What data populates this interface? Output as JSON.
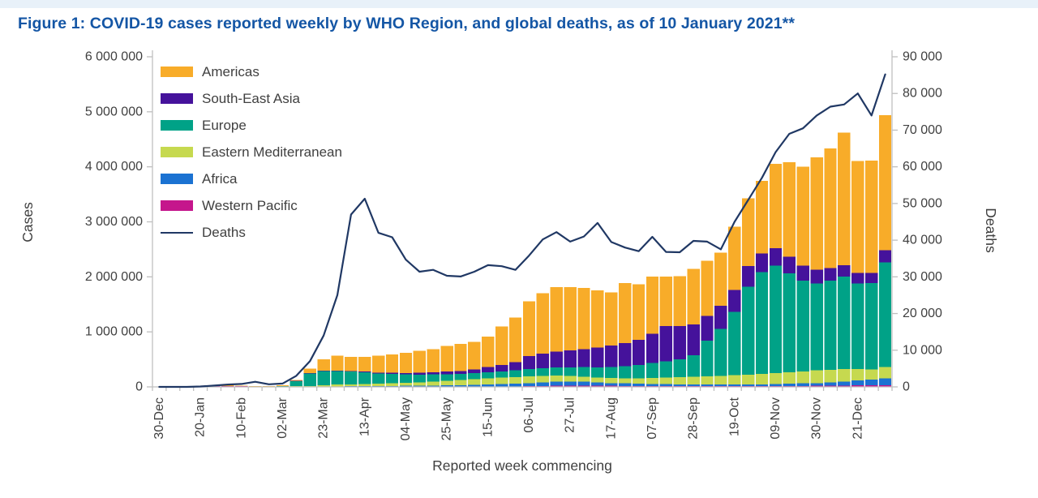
{
  "title": "Figure 1: COVID-19 cases reported weekly by WHO Region, and global deaths, as of 10 January 2021**",
  "colors": {
    "title_text": "#1456a5",
    "axis_text": "#404040",
    "axis_line": "#bfbfbf",
    "top_band": "#e8f1f9",
    "background": "#ffffff",
    "deaths_line": "#203864"
  },
  "left_axis": {
    "label": "Cases",
    "tick_labels": [
      "0",
      "1 000 000",
      "2 000 000",
      "3 000 000",
      "4 000 000",
      "5 000 000",
      "6 000 000"
    ],
    "max": 6000000
  },
  "right_axis": {
    "label": "Deaths",
    "tick_labels": [
      "0",
      "10 000",
      "20 000",
      "30 000",
      "40 000",
      "50 000",
      "60 000",
      "70 000",
      "80 000",
      "90 000"
    ],
    "max": 90000
  },
  "x_axis": {
    "label": "Reported week commencing",
    "visible_tick_labels": [
      "30-Dec",
      "20-Jan",
      "10-Feb",
      "02-Mar",
      "23-Mar",
      "13-Apr",
      "04-May",
      "25-May",
      "15-Jun",
      "06-Jul",
      "27-Jul",
      "17-Aug",
      "07-Sep",
      "28-Sep",
      "19-Oct",
      "09-Nov",
      "30-Nov",
      "21-Dec"
    ],
    "label_every": 3
  },
  "legend": {
    "order": [
      "Americas",
      "South-East Asia",
      "Europe",
      "Eastern Mediterranean",
      "Africa",
      "Western Pacific",
      "Deaths"
    ]
  },
  "chart_data": {
    "type": "bar",
    "subtype": "stacked-weekly-bars-with-line-overlay",
    "title": "COVID-19 cases reported weekly by WHO Region, and global deaths, as of 10 January 2021",
    "xlabel": "Reported week commencing",
    "ylabel_left": "Cases",
    "ylabel_right": "Deaths",
    "ylim_left": [
      0,
      6000000
    ],
    "ylim_right": [
      0,
      90000
    ],
    "grid": false,
    "legend_position": "inside-top-left",
    "categories": [
      "30-Dec",
      "06-Jan",
      "13-Jan",
      "20-Jan",
      "27-Jan",
      "03-Feb",
      "10-Feb",
      "17-Feb",
      "24-Feb",
      "02-Mar",
      "09-Mar",
      "16-Mar",
      "23-Mar",
      "30-Mar",
      "06-Apr",
      "13-Apr",
      "20-Apr",
      "27-Apr",
      "04-May",
      "11-May",
      "18-May",
      "25-May",
      "01-Jun",
      "08-Jun",
      "15-Jun",
      "22-Jun",
      "29-Jun",
      "06-Jul",
      "13-Jul",
      "20-Jul",
      "27-Jul",
      "03-Aug",
      "10-Aug",
      "17-Aug",
      "24-Aug",
      "31-Aug",
      "07-Sep",
      "14-Sep",
      "21-Sep",
      "28-Sep",
      "05-Oct",
      "12-Oct",
      "19-Oct",
      "26-Oct",
      "02-Nov",
      "09-Nov",
      "16-Nov",
      "23-Nov",
      "30-Nov",
      "07-Dec",
      "14-Dec",
      "21-Dec",
      "28-Dec",
      "04-Jan"
    ],
    "series": [
      {
        "name": "Western Pacific",
        "color": "#c5168c",
        "values": [
          1000,
          1000,
          2000,
          6000,
          25000,
          27000,
          20000,
          12000,
          8000,
          6000,
          5000,
          4000,
          4000,
          4000,
          4000,
          4000,
          4000,
          4000,
          4000,
          4000,
          4000,
          5000,
          5000,
          6000,
          7000,
          8000,
          10000,
          13000,
          16000,
          20000,
          22000,
          23000,
          22000,
          20000,
          18000,
          16000,
          14000,
          13000,
          12000,
          12000,
          12000,
          12000,
          13000,
          14000,
          15000,
          16000,
          17000,
          18000,
          20000,
          22000,
          25000,
          28000,
          30000,
          32000
        ]
      },
      {
        "name": "Africa",
        "color": "#1b72d2",
        "values": [
          0,
          0,
          0,
          0,
          0,
          0,
          0,
          0,
          100,
          200,
          500,
          2000,
          5000,
          7000,
          8000,
          10000,
          12000,
          14000,
          16000,
          19000,
          21000,
          24000,
          28000,
          32000,
          37000,
          43000,
          50000,
          55000,
          65000,
          75000,
          75000,
          70000,
          60000,
          50000,
          45000,
          40000,
          40000,
          35000,
          32000,
          30000,
          30000,
          30000,
          30000,
          30000,
          30000,
          35000,
          40000,
          45000,
          50000,
          60000,
          70000,
          90000,
          100000,
          120000
        ]
      },
      {
        "name": "Eastern Mediterranean",
        "color": "#c6d94f",
        "values": [
          0,
          0,
          0,
          0,
          0,
          0,
          100,
          200,
          1500,
          4000,
          7000,
          12000,
          20000,
          30000,
          35000,
          40000,
          45000,
          50000,
          55000,
          60000,
          70000,
          80000,
          90000,
          100000,
          110000,
          120000,
          120000,
          125000,
          120000,
          110000,
          100000,
          95000,
          90000,
          90000,
          95000,
          100000,
          110000,
          120000,
          130000,
          140000,
          150000,
          160000,
          170000,
          180000,
          190000,
          200000,
          210000,
          220000,
          230000,
          230000,
          230000,
          210000,
          190000,
          210000
        ]
      },
      {
        "name": "Europe",
        "color": "#00a287",
        "values": [
          0,
          0,
          0,
          0,
          100,
          100,
          200,
          300,
          2500,
          15000,
          100000,
          230000,
          260000,
          250000,
          230000,
          210000,
          180000,
          170000,
          150000,
          140000,
          130000,
          120000,
          110000,
          110000,
          110000,
          110000,
          120000,
          130000,
          140000,
          150000,
          160000,
          170000,
          180000,
          200000,
          220000,
          240000,
          270000,
          300000,
          330000,
          390000,
          650000,
          850000,
          1150000,
          1600000,
          1850000,
          1950000,
          1800000,
          1650000,
          1580000,
          1620000,
          1680000,
          1550000,
          1570000,
          1900000
        ]
      },
      {
        "name": "South-East Asia",
        "color": "#45129b",
        "values": [
          0,
          0,
          0,
          100,
          200,
          100,
          100,
          100,
          100,
          300,
          1000,
          2000,
          4000,
          7000,
          10000,
          13000,
          15000,
          20000,
          27000,
          32000,
          38000,
          48000,
          58000,
          70000,
          100000,
          120000,
          150000,
          240000,
          260000,
          290000,
          310000,
          330000,
          360000,
          390000,
          420000,
          460000,
          530000,
          640000,
          600000,
          560000,
          450000,
          420000,
          400000,
          370000,
          340000,
          320000,
          300000,
          270000,
          250000,
          230000,
          210000,
          190000,
          180000,
          220000
        ]
      },
      {
        "name": "Americas",
        "color": "#f8ac29",
        "values": [
          0,
          0,
          0,
          0,
          100,
          100,
          100,
          100,
          200,
          1000,
          15000,
          80000,
          210000,
          270000,
          260000,
          270000,
          310000,
          330000,
          370000,
          400000,
          420000,
          470000,
          490000,
          500000,
          550000,
          700000,
          810000,
          990000,
          1100000,
          1170000,
          1150000,
          1110000,
          1040000,
          970000,
          1090000,
          1010000,
          1040000,
          900000,
          910000,
          1010000,
          1000000,
          970000,
          1150000,
          1230000,
          1320000,
          1530000,
          1720000,
          1800000,
          2040000,
          2170000,
          2410000,
          2040000,
          2040000,
          2460000
        ]
      }
    ],
    "line_series": {
      "name": "Deaths",
      "color": "#203864",
      "axis": "right",
      "values": [
        0,
        0,
        10,
        100,
        350,
        650,
        800,
        1400,
        700,
        900,
        3000,
        7000,
        14000,
        25000,
        47000,
        51300,
        42000,
        40800,
        34700,
        31400,
        31900,
        30300,
        30100,
        31400,
        33200,
        32900,
        31900,
        35800,
        40200,
        42200,
        39600,
        41000,
        44700,
        39500,
        38000,
        37000,
        40900,
        36800,
        36700,
        39800,
        39600,
        37500,
        45000,
        51000,
        57000,
        64000,
        69000,
        70500,
        74000,
        76400,
        77000,
        80000,
        74000,
        85200
      ]
    }
  }
}
